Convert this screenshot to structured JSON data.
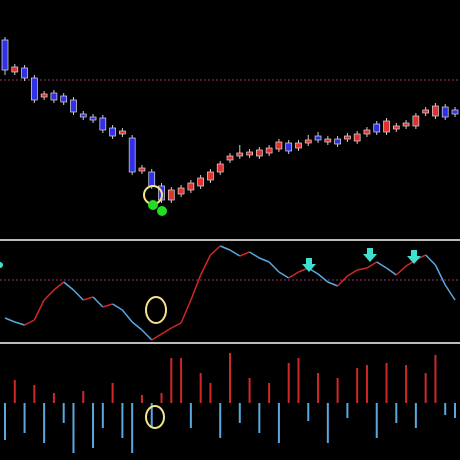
{
  "chart_data": [
    {
      "type": "candlestick",
      "open": [
        200,
        168,
        172,
        162,
        143,
        147,
        144,
        140,
        126,
        123,
        122,
        112,
        106,
        102,
        69,
        68,
        54,
        40,
        46,
        50,
        54,
        60,
        68,
        80,
        84,
        85,
        84,
        87,
        91,
        97,
        92,
        97,
        104,
        98,
        101,
        101,
        99,
        106,
        116,
        108,
        111,
        114,
        114,
        127,
        124,
        133,
        130
      ],
      "close": [
        170,
        173,
        162,
        140,
        146,
        140,
        138,
        128,
        123,
        120,
        110,
        104,
        109,
        68,
        72,
        54,
        40,
        50,
        52,
        57,
        62,
        68,
        76,
        84,
        87,
        88,
        90,
        92,
        98,
        89,
        97,
        100,
        100,
        101,
        96,
        104,
        106,
        110,
        108,
        119,
        114,
        117,
        124,
        130,
        134,
        123,
        126
      ],
      "high": [
        203,
        176,
        175,
        165,
        149,
        150,
        147,
        143,
        129,
        126,
        125,
        115,
        112,
        105,
        75,
        71,
        57,
        53,
        55,
        60,
        65,
        71,
        79,
        87,
        95,
        91,
        93,
        95,
        101,
        100,
        100,
        105,
        108,
        104,
        104,
        107,
        109,
        113,
        119,
        122,
        117,
        120,
        127,
        133,
        137,
        136,
        133
      ],
      "low": [
        165,
        165,
        159,
        137,
        140,
        137,
        135,
        125,
        120,
        117,
        107,
        101,
        103,
        65,
        66,
        51,
        37,
        37,
        43,
        47,
        51,
        57,
        65,
        77,
        81,
        82,
        81,
        84,
        88,
        86,
        89,
        94,
        97,
        95,
        93,
        98,
        96,
        103,
        105,
        105,
        108,
        111,
        111,
        124,
        121,
        120,
        123
      ],
      "up_color": "#e03030",
      "down_color": "#3030e8",
      "ylim": [
        2,
        240
      ],
      "reference_line": 160
    },
    {
      "type": "line",
      "values": [
        22,
        18,
        15,
        20,
        40,
        50,
        58,
        50,
        40,
        43,
        33,
        36,
        30,
        18,
        10,
        0,
        6,
        12,
        17,
        40,
        65,
        85,
        94,
        90,
        84,
        88,
        82,
        78,
        68,
        62,
        68,
        72,
        66,
        58,
        54,
        64,
        70,
        72,
        78,
        72,
        65,
        74,
        80,
        85,
        75,
        55,
        40
      ],
      "up_color": "#d02828",
      "down_color": "#5aa8e0",
      "ylim": [
        0,
        98
      ],
      "reference_line": 60
    },
    {
      "type": "bar",
      "values": [
        -37,
        23,
        -30,
        18,
        -40,
        10,
        -20,
        -50,
        12,
        -45,
        -25,
        20,
        -35,
        -50,
        8,
        -25,
        10,
        45,
        45,
        -25,
        30,
        20,
        -35,
        50,
        -20,
        25,
        -30,
        20,
        -40,
        40,
        45,
        -18,
        30,
        -40,
        25,
        -15,
        35,
        38,
        -35,
        40,
        -20,
        38,
        -25,
        30,
        48,
        -12,
        -15
      ],
      "pos_color": "#d02828",
      "neg_color": "#5aa8e0",
      "ylim": [
        -57,
        57
      ]
    }
  ]
}
